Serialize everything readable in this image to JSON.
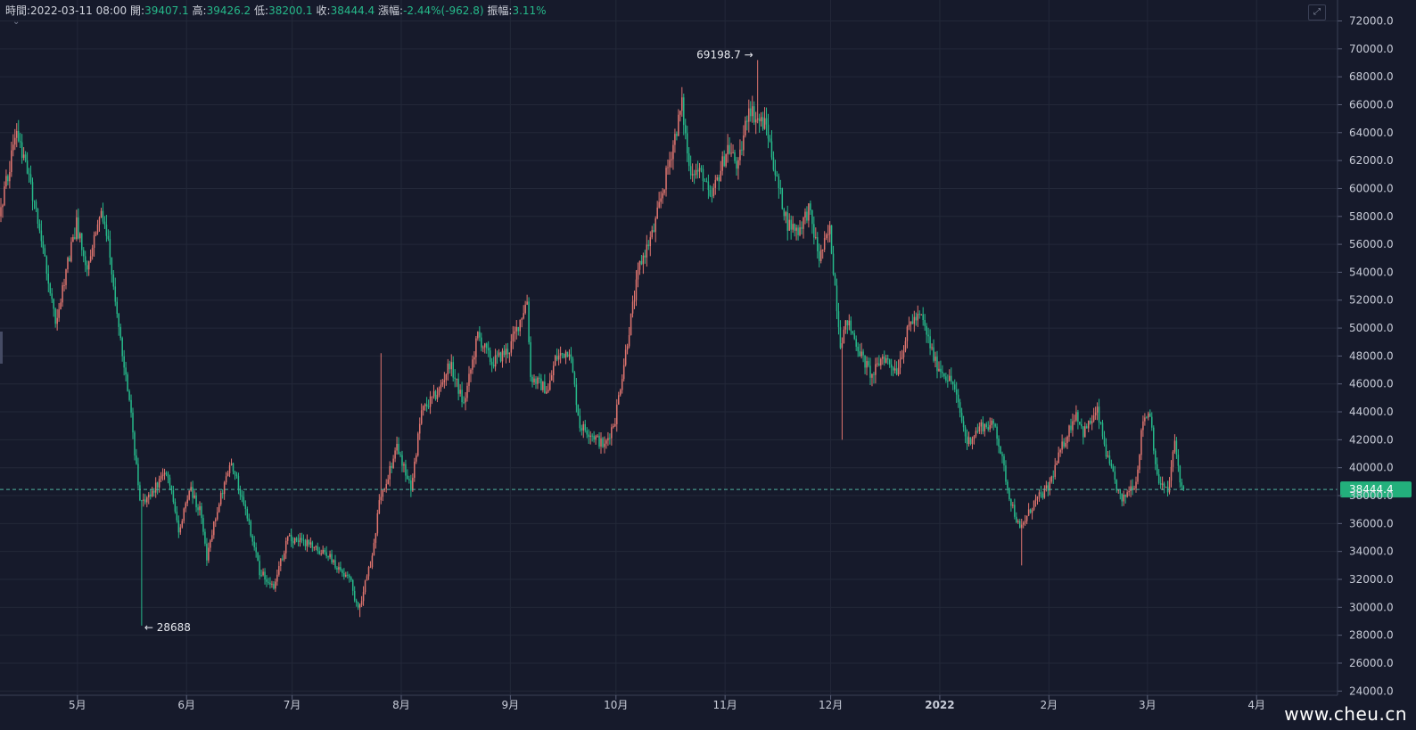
{
  "ohlc": {
    "time_label": "時間:",
    "time": "2022-03-11 08:00",
    "open_label": "開:",
    "open": "39407.1",
    "high_label": "高:",
    "high": "39426.2",
    "low_label": "低:",
    "low": "38200.1",
    "close_label": "收:",
    "close": "38444.4",
    "change_label": "漲幅:",
    "change": "-2.44%(-962.8)",
    "amp_label": "振幅:",
    "amp": "3.11%"
  },
  "watermark": "www.cheu.cn",
  "colors": {
    "up": "#e0756f",
    "down": "#26b98a",
    "background": "#161a2b",
    "grid": "#232839",
    "price_tag": "#23b07c"
  },
  "chart_data": {
    "type": "candlestick",
    "title": "",
    "xlabel": "",
    "ylabel": "",
    "ylim": [
      23700,
      73500
    ],
    "y_ticks": [
      24000,
      26000,
      28000,
      30000,
      32000,
      34000,
      36000,
      38000,
      40000,
      42000,
      44000,
      46000,
      48000,
      50000,
      52000,
      54000,
      56000,
      58000,
      60000,
      62000,
      64000,
      66000,
      68000,
      70000,
      72000
    ],
    "y_tick_labels": [
      "24000.0",
      "26000.0",
      "28000.0",
      "30000.0",
      "32000.0",
      "34000.0",
      "36000.0",
      "38000.0",
      "40000.0",
      "42000.0",
      "44000.0",
      "46000.0",
      "48000.0",
      "50000.0",
      "52000.0",
      "54000.0",
      "56000.0",
      "58000.0",
      "60000.0",
      "62000.0",
      "64000.0",
      "66000.0",
      "68000.0",
      "70000.0",
      "72000.0"
    ],
    "x_range": [
      "2021-04-09",
      "2022-04-24"
    ],
    "x_ticks": [
      {
        "date": "2021-05-01",
        "label": "5月"
      },
      {
        "date": "2021-06-01",
        "label": "6月"
      },
      {
        "date": "2021-07-01",
        "label": "7月"
      },
      {
        "date": "2021-08-01",
        "label": "8月"
      },
      {
        "date": "2021-09-01",
        "label": "9月"
      },
      {
        "date": "2021-10-01",
        "label": "10月"
      },
      {
        "date": "2021-11-01",
        "label": "11月"
      },
      {
        "date": "2021-12-01",
        "label": "12月"
      },
      {
        "date": "2022-01-01",
        "label": "2022"
      },
      {
        "date": "2022-02-01",
        "label": "2月"
      },
      {
        "date": "2022-03-01",
        "label": "3月"
      },
      {
        "date": "2022-04-01",
        "label": "4月"
      }
    ],
    "current_price": 38444.4,
    "current_price_label": "38444.4",
    "annotations": [
      {
        "label": "69198.7 →",
        "date": "2021-11-10",
        "value": 69198.7
      },
      {
        "label": "← 28688",
        "date": "2021-05-19",
        "value": 28688
      }
    ],
    "grid": true,
    "candle_interval_hours": 12,
    "anchors": [
      [
        "2021-04-09",
        58000
      ],
      [
        "2021-04-14",
        64000
      ],
      [
        "2021-04-18",
        60000
      ],
      [
        "2021-04-21",
        56500
      ],
      [
        "2021-04-25",
        50500
      ],
      [
        "2021-05-01",
        57500
      ],
      [
        "2021-05-04",
        54000
      ],
      [
        "2021-05-08",
        58500
      ],
      [
        "2021-05-10",
        56000
      ],
      [
        "2021-05-13",
        50000
      ],
      [
        "2021-05-16",
        45000
      ],
      [
        "2021-05-19",
        37500
      ],
      [
        "2021-05-21",
        37800
      ],
      [
        "2021-05-24",
        38800
      ],
      [
        "2021-05-27",
        39500
      ],
      [
        "2021-05-30",
        35500
      ],
      [
        "2021-06-02",
        38500
      ],
      [
        "2021-06-05",
        37000
      ],
      [
        "2021-06-07",
        33500
      ],
      [
        "2021-06-10",
        37000
      ],
      [
        "2021-06-14",
        40500
      ],
      [
        "2021-06-18",
        37000
      ],
      [
        "2021-06-22",
        32500
      ],
      [
        "2021-06-26",
        31500
      ],
      [
        "2021-06-30",
        35000
      ],
      [
        "2021-07-06",
        34500
      ],
      [
        "2021-07-12",
        33500
      ],
      [
        "2021-07-18",
        31700
      ],
      [
        "2021-07-20",
        29800
      ],
      [
        "2021-07-24",
        33500
      ],
      [
        "2021-07-26",
        37500
      ],
      [
        "2021-07-31",
        41500
      ],
      [
        "2021-08-04",
        38500
      ],
      [
        "2021-08-07",
        44000
      ],
      [
        "2021-08-12",
        45500
      ],
      [
        "2021-08-15",
        47500
      ],
      [
        "2021-08-19",
        44500
      ],
      [
        "2021-08-23",
        49500
      ],
      [
        "2021-08-27",
        47500
      ],
      [
        "2021-09-01",
        48500
      ],
      [
        "2021-09-06",
        52000
      ],
      [
        "2021-09-07",
        46500
      ],
      [
        "2021-09-12",
        45500
      ],
      [
        "2021-09-14",
        47800
      ],
      [
        "2021-09-18",
        48500
      ],
      [
        "2021-09-21",
        43000
      ],
      [
        "2021-09-24",
        42500
      ],
      [
        "2021-09-28",
        41500
      ],
      [
        "2021-10-01",
        43500
      ],
      [
        "2021-10-06",
        51500
      ],
      [
        "2021-10-08",
        54500
      ],
      [
        "2021-10-12",
        57000
      ],
      [
        "2021-10-16",
        61500
      ],
      [
        "2021-10-20",
        66000
      ],
      [
        "2021-10-22",
        61500
      ],
      [
        "2021-10-26",
        61000
      ],
      [
        "2021-10-28",
        59000
      ],
      [
        "2021-11-02",
        63000
      ],
      [
        "2021-11-05",
        61500
      ],
      [
        "2021-11-08",
        66000
      ],
      [
        "2021-11-10",
        65000
      ],
      [
        "2021-11-13",
        64500
      ],
      [
        "2021-11-16",
        60500
      ],
      [
        "2021-11-19",
        57500
      ],
      [
        "2021-11-22",
        57000
      ],
      [
        "2021-11-25",
        58500
      ],
      [
        "2021-11-28",
        55000
      ],
      [
        "2021-12-01",
        57000
      ],
      [
        "2021-12-04",
        49000
      ],
      [
        "2021-12-06",
        50500
      ],
      [
        "2021-12-10",
        48000
      ],
      [
        "2021-12-13",
        46500
      ],
      [
        "2021-12-16",
        48000
      ],
      [
        "2021-12-20",
        47000
      ],
      [
        "2021-12-24",
        50500
      ],
      [
        "2021-12-27",
        50800
      ],
      [
        "2021-12-31",
        47500
      ],
      [
        "2022-01-05",
        46000
      ],
      [
        "2022-01-09",
        41800
      ],
      [
        "2022-01-13",
        43000
      ],
      [
        "2022-01-17",
        43000
      ],
      [
        "2022-01-21",
        38000
      ],
      [
        "2022-01-24",
        35500
      ],
      [
        "2022-01-28",
        37500
      ],
      [
        "2022-02-01",
        38500
      ],
      [
        "2022-02-05",
        41500
      ],
      [
        "2022-02-09",
        44000
      ],
      [
        "2022-02-11",
        42500
      ],
      [
        "2022-02-15",
        44000
      ],
      [
        "2022-02-18",
        40500
      ],
      [
        "2022-02-22",
        37500
      ],
      [
        "2022-02-24",
        38500
      ],
      [
        "2022-02-26",
        39000
      ],
      [
        "2022-02-28",
        43500
      ],
      [
        "2022-03-02",
        44000
      ],
      [
        "2022-03-04",
        39200
      ],
      [
        "2022-03-07",
        38200
      ],
      [
        "2022-03-09",
        41800
      ],
      [
        "2022-03-11",
        38444
      ]
    ]
  }
}
